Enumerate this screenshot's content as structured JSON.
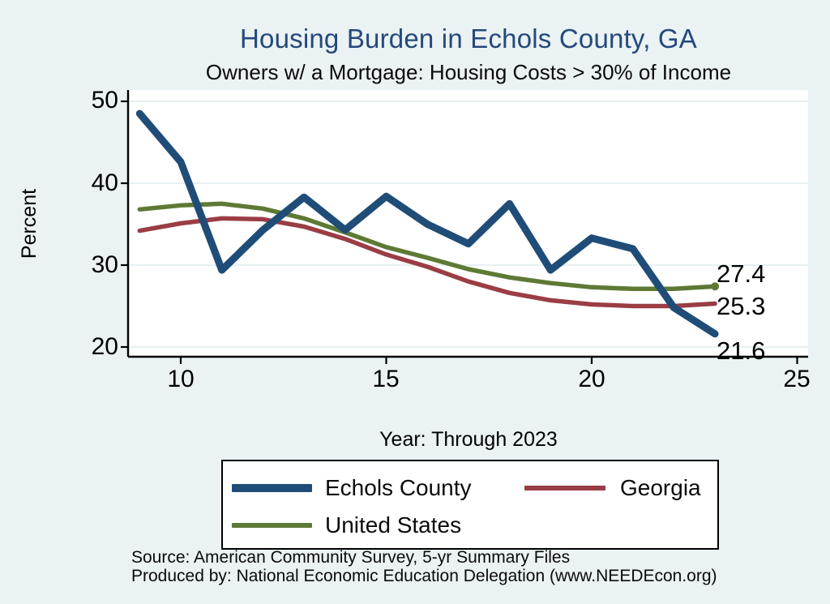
{
  "title": "Housing Burden in Echols County, GA",
  "subtitle": "Owners w/ a Mortgage: Housing Costs > 30% of Income",
  "footer": {
    "source": "Source: American Community Survey, 5-yr Summary Files",
    "produced_by": "Produced by: National Economic Education Delegation (www.NEEDEcon.org)"
  },
  "colors": {
    "background": "#eaf2f3",
    "plot_background": "#ffffff",
    "gridline": "#dfebee",
    "axis": "#000000",
    "title_text": "#25497c",
    "echols_navy": "#1f4d78",
    "georgia_maroon": "#9a3d44",
    "us_olive": "#5d7a35"
  },
  "chart_data": {
    "type": "line",
    "x": [
      9,
      10,
      11,
      12,
      13,
      14,
      15,
      16,
      17,
      18,
      19,
      20,
      21,
      22,
      23
    ],
    "series": [
      {
        "name": "Echols County",
        "color": "#1f4d78",
        "values": [
          48.5,
          42.6,
          29.4,
          34.3,
          38.3,
          34.3,
          38.4,
          35.0,
          32.6,
          37.5,
          29.4,
          33.3,
          32.0,
          24.8,
          21.6
        ],
        "end_label": "21.6",
        "end_marker": false
      },
      {
        "name": "Georgia",
        "color": "#9a3d44",
        "values": [
          34.2,
          35.1,
          35.7,
          35.6,
          34.7,
          33.2,
          31.3,
          29.8,
          28.0,
          26.6,
          25.7,
          25.2,
          25.0,
          25.0,
          25.3
        ],
        "end_label": "25.3",
        "end_marker": false
      },
      {
        "name": "United States",
        "color": "#5d7a35",
        "values": [
          36.8,
          37.3,
          37.5,
          36.9,
          35.7,
          34.0,
          32.2,
          30.9,
          29.5,
          28.5,
          27.8,
          27.3,
          27.1,
          27.1,
          27.4
        ],
        "end_label": "27.4",
        "end_marker": true
      }
    ],
    "xlabel": "Year: Through 2023",
    "ylabel": "Percent",
    "x_ticks": [
      10,
      15,
      20,
      25
    ],
    "y_ticks": [
      50,
      40,
      30,
      20
    ],
    "xlim": [
      8.7,
      25.3
    ],
    "ylim": [
      18.4,
      51.5
    ],
    "grid": "horizontal",
    "legend_position": "bottom"
  }
}
